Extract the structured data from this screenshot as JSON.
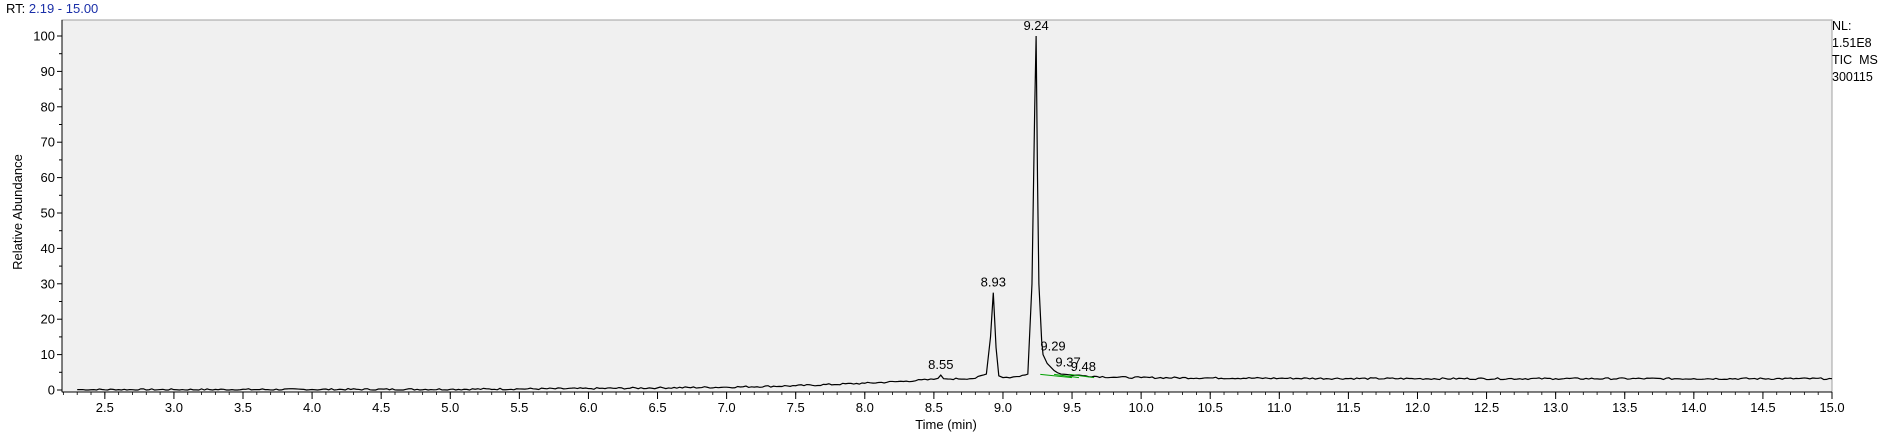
{
  "header": {
    "rt_prefix": "RT:",
    "rt_range": "2.19 - 15.00"
  },
  "info": {
    "nl_label": "NL:",
    "nl_value": "1.51E8",
    "scan_type": "TIC  MS",
    "sample": "300115"
  },
  "colors": {
    "plot_background": "#f0f0f0",
    "trace": "#000000",
    "baseline_marker": "#00a000",
    "rt_range_text": "#1a2fa8"
  },
  "chart_data": {
    "type": "line",
    "title": "",
    "xlabel": "Time (min)",
    "ylabel": "Relative Abundance",
    "xlim": [
      2.19,
      15.0
    ],
    "ylim": [
      0,
      100
    ],
    "x_ticks": [
      "2.5",
      "3.0",
      "3.5",
      "4.0",
      "4.5",
      "5.0",
      "5.5",
      "6.0",
      "6.5",
      "7.0",
      "7.5",
      "8.0",
      "8.5",
      "9.0",
      "9.5",
      "10.0",
      "10.5",
      "11.0",
      "11.5",
      "12.0",
      "12.5",
      "13.0",
      "13.5",
      "14.0",
      "14.5",
      "15.0"
    ],
    "y_ticks": [
      "0",
      "10",
      "20",
      "30",
      "40",
      "50",
      "60",
      "70",
      "80",
      "90",
      "100"
    ],
    "grid": false,
    "series": [
      {
        "x": [
          2.3,
          3.0,
          4.0,
          5.0,
          5.5,
          6.0,
          6.5,
          7.0,
          7.5,
          8.0,
          8.3,
          8.5,
          8.53,
          8.55,
          8.57,
          8.6,
          8.8,
          8.88,
          8.91,
          8.93,
          8.95,
          8.97,
          9.0,
          9.1,
          9.18,
          9.21,
          9.23,
          9.24,
          9.25,
          9.26,
          9.28,
          9.29,
          9.32,
          9.37,
          9.42,
          9.48,
          9.6,
          9.8,
          10.0,
          10.5,
          11.0,
          12.0,
          13.0,
          14.0,
          15.0
        ],
        "y": [
          0.1,
          0.1,
          0.15,
          0.2,
          0.3,
          0.4,
          0.6,
          0.8,
          1.2,
          1.9,
          2.5,
          3.0,
          3.3,
          4.2,
          3.2,
          3.1,
          3.3,
          4.5,
          15.0,
          27.5,
          12.0,
          4.0,
          3.5,
          3.8,
          4.5,
          30.0,
          80.0,
          100.0,
          60.0,
          30.0,
          14.0,
          10.0,
          7.5,
          5.5,
          4.5,
          4.3,
          4.0,
          3.6,
          3.5,
          3.4,
          3.3,
          3.2,
          3.2,
          3.2,
          3.2
        ]
      }
    ],
    "peak_labels": [
      {
        "rt": 8.55,
        "label": "8.55",
        "y": 4.2
      },
      {
        "rt": 8.93,
        "label": "8.93",
        "y": 27.5
      },
      {
        "rt": 9.24,
        "label": "9.24",
        "y": 100.0
      },
      {
        "rt": 9.29,
        "label": "9.29",
        "y": 10.0
      },
      {
        "rt": 9.37,
        "label": "9.37",
        "y": 5.5
      },
      {
        "rt": 9.48,
        "label": "9.48",
        "y": 4.3
      }
    ]
  }
}
